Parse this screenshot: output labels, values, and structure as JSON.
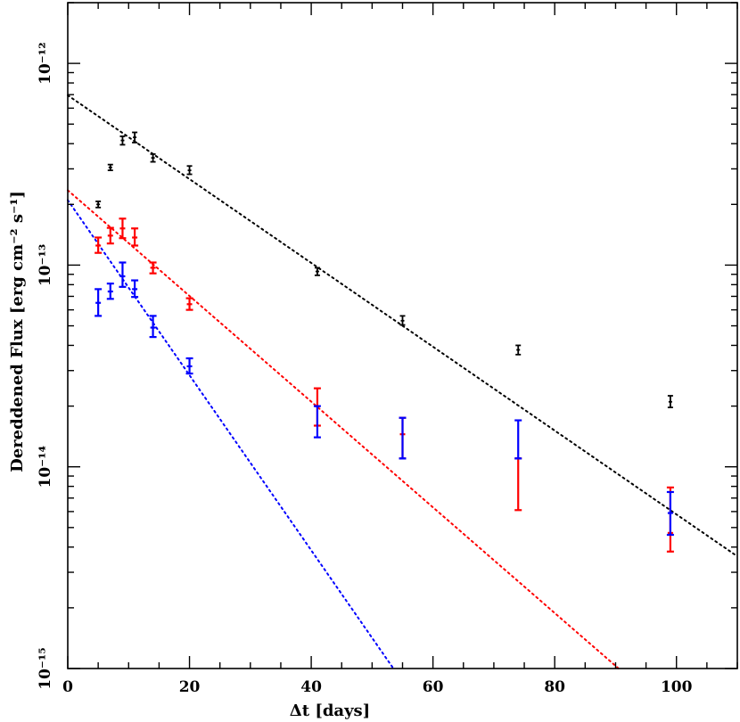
{
  "chart_data": {
    "type": "scatter",
    "title": "",
    "xlabel": "Δt [days]",
    "ylabel": "Dereddened Flux [erg cm⁻² s⁻¹]",
    "xlim": [
      0,
      110
    ],
    "ylim": [
      1e-15,
      2e-12
    ],
    "yscale": "log",
    "grid": false,
    "x_ticks": [
      0,
      20,
      40,
      60,
      80,
      100
    ],
    "x_tick_labels": [
      "0",
      "20",
      "40",
      "60",
      "80",
      "100"
    ],
    "y_ticks": [
      1e-15,
      1e-14,
      1e-13,
      1e-12
    ],
    "y_tick_labels": [
      "10⁻¹⁵",
      "10⁻¹⁴",
      "10⁻¹³",
      "10⁻¹²"
    ],
    "series": [
      {
        "color": "#000000",
        "points": [
          {
            "x": 5,
            "y": 2e-13,
            "lo": 1.93e-13,
            "hi": 2.07e-13
          },
          {
            "x": 7,
            "y": 3.05e-13,
            "lo": 2.95e-13,
            "hi": 3.15e-13
          },
          {
            "x": 9,
            "y": 4.15e-13,
            "lo": 3.95e-13,
            "hi": 4.35e-13
          },
          {
            "x": 11,
            "y": 4.3e-13,
            "lo": 4.05e-13,
            "hi": 4.55e-13
          },
          {
            "x": 14,
            "y": 3.4e-13,
            "lo": 3.25e-13,
            "hi": 3.55e-13
          },
          {
            "x": 20,
            "y": 2.95e-13,
            "lo": 2.82e-13,
            "hi": 3.1e-13
          },
          {
            "x": 41,
            "y": 9.3e-14,
            "lo": 8.9e-14,
            "hi": 9.7e-14
          },
          {
            "x": 55,
            "y": 5.3e-14,
            "lo": 5.05e-14,
            "hi": 5.6e-14
          },
          {
            "x": 74,
            "y": 3.8e-14,
            "lo": 3.6e-14,
            "hi": 4e-14
          },
          {
            "x": 99,
            "y": 2.1e-14,
            "lo": 1.97e-14,
            "hi": 2.25e-14
          }
        ],
        "fit": {
          "x": [
            0,
            110
          ],
          "y": [
            6.95e-13,
            3.6e-15
          ]
        }
      },
      {
        "color": "#ff0000",
        "points": [
          {
            "x": 5,
            "y": 1.25e-13,
            "lo": 1.15e-13,
            "hi": 1.37e-13
          },
          {
            "x": 7,
            "y": 1.4e-13,
            "lo": 1.28e-13,
            "hi": 1.53e-13
          },
          {
            "x": 9,
            "y": 1.52e-13,
            "lo": 1.36e-13,
            "hi": 1.7e-13
          },
          {
            "x": 11,
            "y": 1.37e-13,
            "lo": 1.25e-13,
            "hi": 1.52e-13
          },
          {
            "x": 14,
            "y": 9.7e-14,
            "lo": 9.1e-14,
            "hi": 1.03e-13
          },
          {
            "x": 20,
            "y": 6.4e-14,
            "lo": 6e-14,
            "hi": 6.85e-14
          },
          {
            "x": 41,
            "y": 2e-14,
            "lo": 1.6e-14,
            "hi": 2.45e-14
          },
          {
            "x": 55,
            "y": 1.45e-14,
            "lo": 1.1e-14,
            "hi": 1.75e-14
          },
          {
            "x": 74,
            "y": 1.1e-14,
            "lo": 6.1e-15,
            "hi": 1.1e-14
          },
          {
            "x": 99,
            "y": 4.7e-15,
            "lo": 3.8e-15,
            "hi": 7.9e-15
          }
        ],
        "fit": {
          "x": [
            0,
            90.5
          ],
          "y": [
            2.35e-13,
            1e-15
          ]
        }
      },
      {
        "color": "#0000ff",
        "points": [
          {
            "x": 5,
            "y": 6.5e-14,
            "lo": 5.6e-14,
            "hi": 7.6e-14
          },
          {
            "x": 7,
            "y": 7.4e-14,
            "lo": 6.8e-14,
            "hi": 8.1e-14
          },
          {
            "x": 9,
            "y": 8.8e-14,
            "lo": 7.8e-14,
            "hi": 1.03e-13
          },
          {
            "x": 11,
            "y": 7.6e-14,
            "lo": 6.95e-14,
            "hi": 8.4e-14
          },
          {
            "x": 14,
            "y": 4.9e-14,
            "lo": 4.4e-14,
            "hi": 5.6e-14
          },
          {
            "x": 20,
            "y": 3.15e-14,
            "lo": 2.9e-14,
            "hi": 3.45e-14
          },
          {
            "x": 41,
            "y": 2e-14,
            "lo": 1.4e-14,
            "hi": 2e-14
          },
          {
            "x": 55,
            "y": 1.1e-14,
            "lo": 1.1e-14,
            "hi": 1.75e-14
          },
          {
            "x": 74,
            "y": 1.1e-14,
            "lo": 1.1e-14,
            "hi": 1.7e-14
          },
          {
            "x": 99,
            "y": 5.9e-15,
            "lo": 4.6e-15,
            "hi": 7.5e-15
          }
        ],
        "fit": {
          "x": [
            0,
            53.5
          ],
          "y": [
            2.1e-13,
            1e-15
          ]
        }
      }
    ]
  }
}
